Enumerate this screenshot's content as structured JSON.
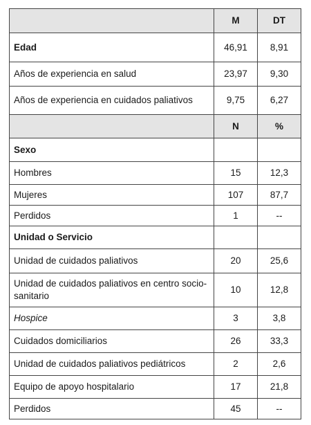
{
  "table": {
    "header": [
      "M",
      "DT"
    ],
    "rows": [
      [
        "Edad",
        "46,91",
        "8,91"
      ],
      [
        "Años de experiencia en salud",
        "23,97",
        "9,30"
      ],
      [
        "Años de experiencia en cuidados paliativos",
        "9,75",
        "6,27"
      ]
    ],
    "header2": [
      "N",
      "%"
    ],
    "sections": [
      {
        "title": "Sexo",
        "rows": [
          [
            "Hombres",
            "15",
            "12,3"
          ],
          [
            "Mujeres",
            "107",
            "87,7"
          ],
          [
            "Perdidos",
            "1",
            "--"
          ]
        ]
      },
      {
        "title": "Unidad o Servicio",
        "rows": [
          [
            "Unidad de cuidados paliativos",
            "20",
            "25,6"
          ],
          [
            "Unidad de cuidados paliativos en centro socio-sanitario",
            "10",
            "12,8"
          ],
          [
            "Hospice",
            "3",
            "3,8"
          ],
          [
            "Cuidados domiciliarios",
            "26",
            "33,3"
          ],
          [
            "Unidad de cuidados paliativos pediátricos",
            "2",
            "2,6"
          ],
          [
            "Equipo de apoyo hospitalario",
            "17",
            "21,8"
          ],
          [
            "Perdidos",
            "45",
            "--"
          ]
        ]
      }
    ]
  }
}
